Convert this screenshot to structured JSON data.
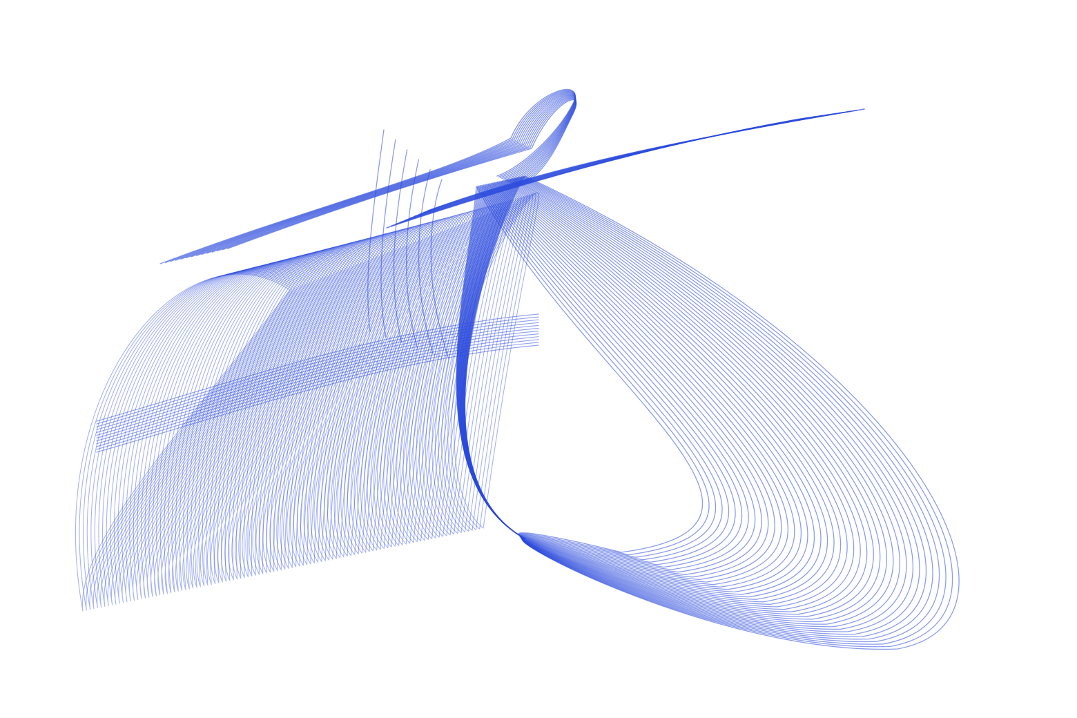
{
  "artwork": {
    "stroke_color": "#2c4bdd",
    "background_color": "#ffffff",
    "families": [
      {
        "name": "left-tube",
        "count": 110
      },
      {
        "name": "right-loops",
        "count": 40
      },
      {
        "name": "top-loops",
        "count": 14
      },
      {
        "name": "top-spikes",
        "count": 6
      },
      {
        "name": "top-streak",
        "count": 10
      },
      {
        "name": "middle-band",
        "count": 12
      }
    ]
  }
}
